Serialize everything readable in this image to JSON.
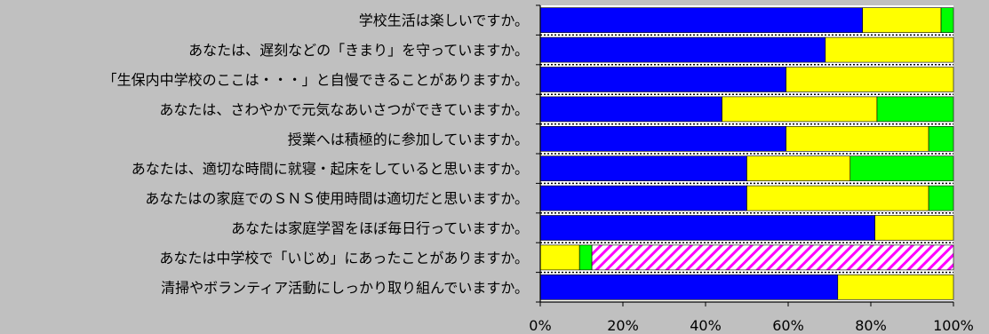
{
  "chart_data": {
    "type": "bar",
    "orientation": "horizontal",
    "stacked": true,
    "percent": true,
    "title": "",
    "xlabel": "",
    "ylabel": "",
    "xlim": [
      0,
      100
    ],
    "x_ticks": [
      "0%",
      "20%",
      "40%",
      "60%",
      "80%",
      "100%"
    ],
    "grid": "dotted separators between bars",
    "legend": "none",
    "categories": [
      "学校生活は楽しいですか。",
      "あなたは、遅刻などの「きまり」を守っていますか。",
      "「生保内中学校のここは・・・」と自慢できることがありますか。",
      "あなたは、さわやかで元気なあいさつができていますか。",
      "授業へは積極的に参加していますか。",
      "あなたは、適切な時間に就寝・起床をしていると思いますか。",
      "あなたはの家庭でのＳＮＳ使用時間は適切だと思いますか。",
      "あなたは家庭学習をほぼ毎日行っていますか。",
      "あなたは中学校で「いじめ」にあったことがありますか。",
      "清掃やボランティア活動にしっかり取り組んでいますか。"
    ],
    "series": [
      {
        "values": [
          78,
          69,
          59.5,
          44,
          59.5,
          50,
          50,
          81,
          0,
          72
        ]
      },
      {
        "values": [
          19,
          31,
          40.5,
          37.5,
          34.5,
          25,
          44,
          19,
          9.5,
          28
        ]
      },
      {
        "values": [
          3,
          0,
          0,
          18.5,
          6,
          25,
          6,
          0,
          3,
          0
        ]
      },
      {
        "values": [
          0,
          0,
          0,
          0,
          0,
          0,
          0,
          0,
          87.5,
          0
        ]
      }
    ],
    "colors": [
      "#0000ff",
      "#ffff00",
      "#00ff00",
      "#ff00ff"
    ]
  }
}
